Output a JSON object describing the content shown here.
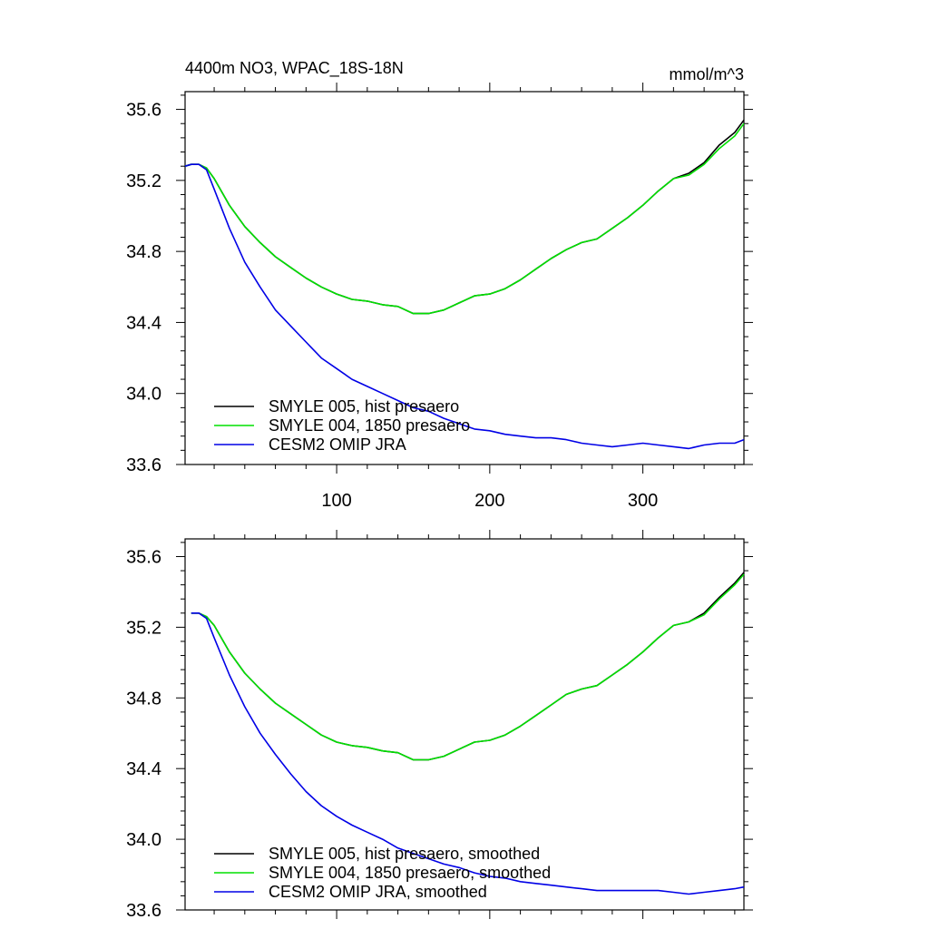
{
  "colors": {
    "hist": "#000000",
    "p1850": "#00e000",
    "omip": "#0000e6",
    "frame": "#000000"
  },
  "chart_data": [
    {
      "type": "line",
      "title": "4400m NO3, WPAC_18S-18N",
      "units": "mmol/m^3",
      "xlim": [
        1,
        366
      ],
      "ylim": [
        33.6,
        35.7
      ],
      "xticks": [
        100,
        200,
        300
      ],
      "xtick_labels": [
        "100",
        "200",
        "300"
      ],
      "yticks": [
        33.6,
        34.0,
        34.4,
        34.8,
        35.2,
        35.6
      ],
      "ytick_labels": [
        "33.6",
        "34.0",
        "34.4",
        "34.8",
        "35.2",
        "35.6"
      ],
      "grid": false,
      "legend": "bottom-left",
      "x": [
        1,
        5,
        10,
        15,
        20,
        30,
        40,
        50,
        60,
        70,
        80,
        90,
        100,
        110,
        120,
        130,
        140,
        150,
        160,
        170,
        180,
        190,
        200,
        210,
        220,
        230,
        240,
        250,
        260,
        270,
        280,
        290,
        300,
        310,
        320,
        330,
        340,
        350,
        360,
        366
      ],
      "series": [
        {
          "name": "SMYLE 005, hist presaero",
          "color_key": "hist",
          "values": [
            35.28,
            35.29,
            35.29,
            35.27,
            35.21,
            35.06,
            34.94,
            34.85,
            34.77,
            34.71,
            34.65,
            34.6,
            34.56,
            34.53,
            34.52,
            34.5,
            34.49,
            34.45,
            34.45,
            34.47,
            34.51,
            34.55,
            34.56,
            34.59,
            34.64,
            34.7,
            34.76,
            34.81,
            34.85,
            34.87,
            34.93,
            34.99,
            35.06,
            35.14,
            35.21,
            35.24,
            35.3,
            35.4,
            35.47,
            35.54
          ]
        },
        {
          "name": "SMYLE 004, 1850 presaero",
          "color_key": "p1850",
          "values": [
            35.28,
            35.29,
            35.29,
            35.27,
            35.21,
            35.06,
            34.94,
            34.85,
            34.77,
            34.71,
            34.65,
            34.6,
            34.56,
            34.53,
            34.52,
            34.5,
            34.49,
            34.45,
            34.45,
            34.47,
            34.51,
            34.55,
            34.56,
            34.59,
            34.64,
            34.7,
            34.76,
            34.81,
            34.85,
            34.87,
            34.93,
            34.99,
            35.06,
            35.14,
            35.21,
            35.23,
            35.29,
            35.38,
            35.45,
            35.52
          ]
        },
        {
          "name": "CESM2 OMIP JRA",
          "color_key": "omip",
          "values": [
            35.28,
            35.29,
            35.29,
            35.26,
            35.15,
            34.93,
            34.74,
            34.6,
            34.47,
            34.38,
            34.29,
            34.2,
            34.14,
            34.08,
            34.04,
            34.0,
            33.96,
            33.92,
            33.9,
            33.86,
            33.83,
            33.8,
            33.79,
            33.77,
            33.76,
            33.75,
            33.75,
            33.74,
            33.72,
            33.71,
            33.7,
            33.71,
            33.72,
            33.71,
            33.7,
            33.69,
            33.71,
            33.72,
            33.72,
            33.74
          ]
        }
      ]
    },
    {
      "type": "line",
      "title": "",
      "units": "",
      "xlim": [
        1,
        366
      ],
      "ylim": [
        33.6,
        35.7
      ],
      "xticks": [
        100,
        200,
        300
      ],
      "xtick_labels": [],
      "yticks": [
        33.6,
        34.0,
        34.4,
        34.8,
        35.2,
        35.6
      ],
      "ytick_labels": [
        "33.6",
        "34.0",
        "34.4",
        "34.8",
        "35.2",
        "35.6"
      ],
      "grid": false,
      "legend": "bottom-left",
      "x": [
        5,
        10,
        15,
        20,
        30,
        40,
        50,
        60,
        70,
        80,
        90,
        100,
        110,
        120,
        130,
        140,
        150,
        160,
        170,
        180,
        190,
        200,
        210,
        220,
        230,
        240,
        250,
        260,
        270,
        280,
        290,
        300,
        310,
        320,
        330,
        340,
        350,
        360,
        366
      ],
      "series": [
        {
          "name": "SMYLE 005, hist presaero, smoothed",
          "color_key": "hist",
          "values": [
            35.28,
            35.28,
            35.26,
            35.21,
            35.06,
            34.94,
            34.85,
            34.77,
            34.71,
            34.65,
            34.59,
            34.55,
            34.53,
            34.52,
            34.5,
            34.49,
            34.45,
            34.45,
            34.47,
            34.51,
            34.55,
            34.56,
            34.59,
            34.64,
            34.7,
            34.76,
            34.82,
            34.85,
            34.87,
            34.93,
            34.99,
            35.06,
            35.14,
            35.21,
            35.23,
            35.28,
            35.37,
            35.45,
            35.51
          ]
        },
        {
          "name": "SMYLE 004, 1850 presaero, smoothed",
          "color_key": "p1850",
          "values": [
            35.28,
            35.28,
            35.26,
            35.21,
            35.06,
            34.94,
            34.85,
            34.77,
            34.71,
            34.65,
            34.59,
            34.55,
            34.53,
            34.52,
            34.5,
            34.49,
            34.45,
            34.45,
            34.47,
            34.51,
            34.55,
            34.56,
            34.59,
            34.64,
            34.7,
            34.76,
            34.82,
            34.85,
            34.87,
            34.93,
            34.99,
            35.06,
            35.14,
            35.21,
            35.23,
            35.27,
            35.36,
            35.44,
            35.5
          ]
        },
        {
          "name": "CESM2 OMIP JRA, smoothed",
          "color_key": "omip",
          "values": [
            35.28,
            35.28,
            35.25,
            35.14,
            34.93,
            34.75,
            34.6,
            34.48,
            34.37,
            34.27,
            34.19,
            34.13,
            34.08,
            34.04,
            34.0,
            33.95,
            33.92,
            33.89,
            33.86,
            33.84,
            33.81,
            33.79,
            33.78,
            33.76,
            33.75,
            33.74,
            33.73,
            33.72,
            33.71,
            33.71,
            33.71,
            33.71,
            33.71,
            33.7,
            33.69,
            33.7,
            33.71,
            33.72,
            33.73
          ]
        }
      ]
    }
  ]
}
